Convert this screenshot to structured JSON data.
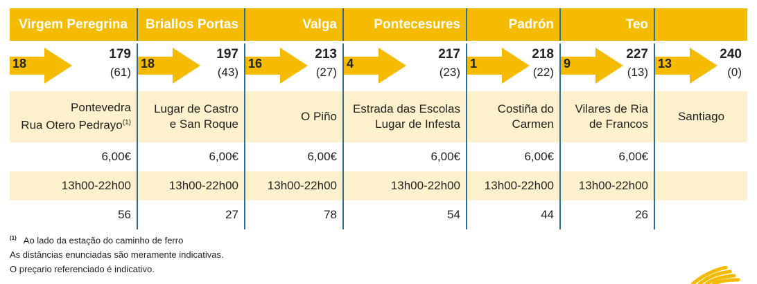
{
  "columns": [
    {
      "header": "Virgem Peregrina",
      "leg": "18",
      "distance": "179",
      "remaining": "(61)",
      "place_line1": "Pontevedra",
      "place_line2": "Rua Otero Pedrayo",
      "place_sup": "(1)",
      "price": "6,00€",
      "hours": "13h00-22h00",
      "count": "56"
    },
    {
      "header": "Briallos Portas",
      "leg": "18",
      "distance": "197",
      "remaining": "(43)",
      "place_line1": "Lugar de Castro",
      "place_line2": "e San Roque",
      "place_sup": "",
      "price": "6,00€",
      "hours": "13h00-22h00",
      "count": "27"
    },
    {
      "header": "Valga",
      "leg": "16",
      "distance": "213",
      "remaining": "(27)",
      "place_line1": "O Piño",
      "place_line2": "",
      "place_sup": "",
      "price": "6,00€",
      "hours": "13h00-22h00",
      "count": "78"
    },
    {
      "header": "Pontecesures",
      "leg": "4",
      "distance": "217",
      "remaining": "(23)",
      "place_line1": "Estrada das Escolas",
      "place_line2": "Lugar de Infesta",
      "place_sup": "",
      "price": "6,00€",
      "hours": "13h00-22h00",
      "count": "54"
    },
    {
      "header": "Padrón",
      "leg": "1",
      "distance": "218",
      "remaining": "(22)",
      "place_line1": "Costiña do",
      "place_line2": "Carmen",
      "place_sup": "",
      "price": "6,00€",
      "hours": "13h00-22h00",
      "count": "44"
    },
    {
      "header": "Teo",
      "leg": "9",
      "distance": "227",
      "remaining": "(13)",
      "place_line1": "Vilares de Ria",
      "place_line2": "de Francos",
      "place_sup": "",
      "price": "6,00€",
      "hours": "13h00-22h00",
      "count": "26"
    },
    {
      "header": "",
      "leg": "13",
      "distance": "240",
      "remaining": "(0)",
      "place_line1": "Santiago",
      "place_line2": "",
      "place_sup": "",
      "price": "",
      "hours": "",
      "count": ""
    }
  ],
  "notes": {
    "footnote_marker": "(1)",
    "footnote": "Ao lado da estação do caminho de ferro",
    "line2": "As distâncias enunciadas são meramente indicativas.",
    "line3": "O preçario referenciado é indicativo."
  },
  "colors": {
    "yellow": "#f5bb00",
    "cream": "#fdf0cc",
    "separator": "#2b6e95"
  },
  "icons": {
    "arrow": "arrow-right-icon",
    "logo": "scallop-shell-logo"
  }
}
